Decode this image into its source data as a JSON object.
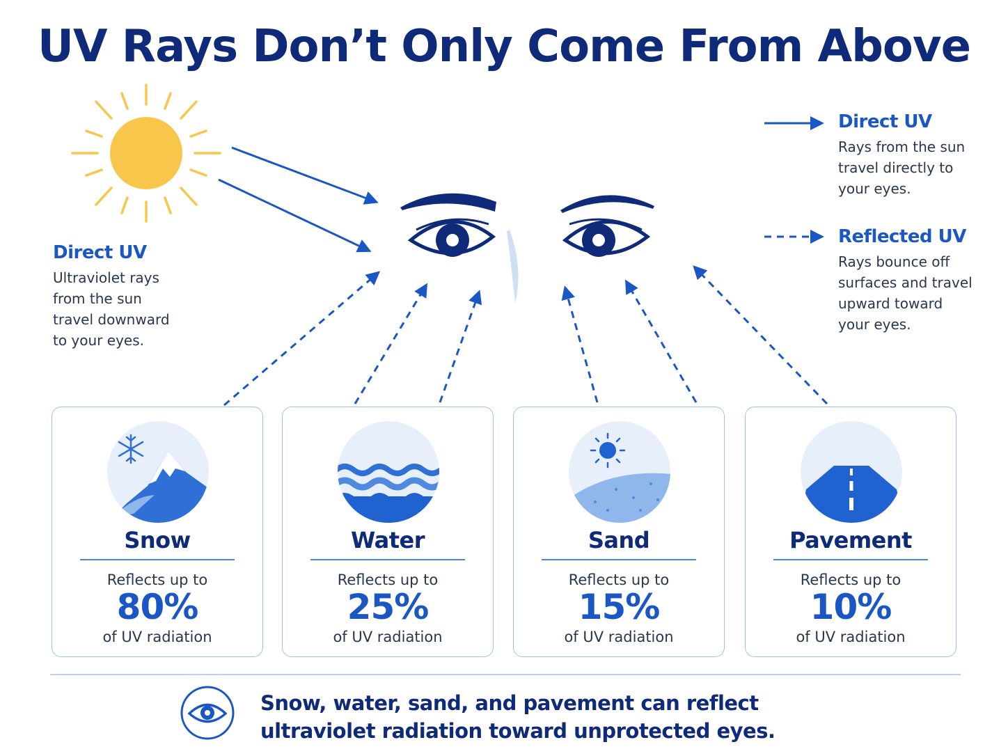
{
  "title": "UV Rays Don’t Only Come From Above",
  "left_note": {
    "heading": "Direct UV",
    "lines": [
      "Ultraviolet rays",
      "from the sun",
      "travel downward",
      "to your eyes."
    ]
  },
  "legend": [
    {
      "heading": "Direct UV",
      "lines": [
        "Rays from the sun",
        "travel directly to",
        "your eyes."
      ],
      "line_style": "solid"
    },
    {
      "heading": "Reflected UV",
      "lines": [
        "Rays bounce off",
        "surfaces and travel",
        "upward toward",
        "your eyes."
      ],
      "line_style": "dashed"
    }
  ],
  "surfaces": [
    {
      "name": "Snow",
      "prefix": "Reflects up to",
      "percent": "80%",
      "suffix": "of UV radiation",
      "icon": "snow-mountain-icon"
    },
    {
      "name": "Water",
      "prefix": "Reflects up to",
      "percent": "25%",
      "suffix": "of UV radiation",
      "icon": "water-waves-icon"
    },
    {
      "name": "Sand",
      "prefix": "Reflects up to",
      "percent": "15%",
      "suffix": "of UV radiation",
      "icon": "sand-dune-icon"
    },
    {
      "name": "Pavement",
      "prefix": "Reflects up to",
      "percent": "10%",
      "suffix": "of UV radiation",
      "icon": "road-icon"
    }
  ],
  "footer": {
    "icon": "eye-icon",
    "lines": [
      "Snow, water, sand, and pavement can reflect",
      "ultraviolet radiation toward unprotected eyes."
    ]
  },
  "colors": {
    "navy": "#0e2a78",
    "accent_blue": "#1a56c4",
    "sun_yellow": "#f7c64a",
    "card_border": "#9ec2ef"
  }
}
